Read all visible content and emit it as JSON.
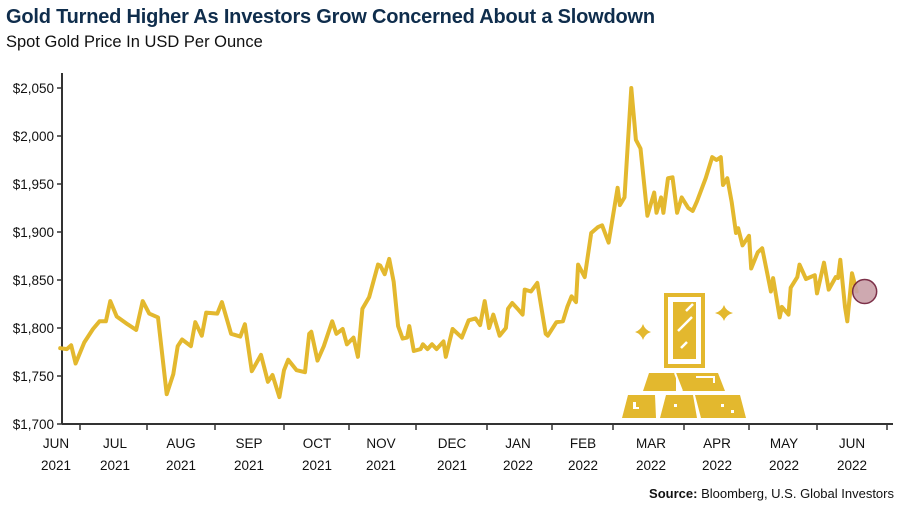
{
  "chart_data": {
    "type": "line",
    "title": "Gold Turned Higher As Investors Grow Concerned About a Slowdown",
    "subtitle": "Spot Gold Price In USD Per Ounce",
    "xlabel": "",
    "ylabel": "",
    "ylim": [
      1700,
      2050
    ],
    "y_ticks": [
      "$1,700",
      "$1,750",
      "$1,800",
      "$1,850",
      "$1,900",
      "$1,950",
      "$2,000",
      "$2,050"
    ],
    "y_tick_values": [
      1700,
      1750,
      1800,
      1850,
      1900,
      1950,
      2000,
      2050
    ],
    "x_ticks": [
      {
        "month": "JUN",
        "year": "2021"
      },
      {
        "month": "JUL",
        "year": "2021"
      },
      {
        "month": "AUG",
        "year": "2021"
      },
      {
        "month": "SEP",
        "year": "2021"
      },
      {
        "month": "OCT",
        "year": "2021"
      },
      {
        "month": "NOV",
        "year": "2021"
      },
      {
        "month": "DEC",
        "year": "2021"
      },
      {
        "month": "JAN",
        "year": "2022"
      },
      {
        "month": "FEB",
        "year": "2022"
      },
      {
        "month": "MAR",
        "year": "2022"
      },
      {
        "month": "APR",
        "year": "2022"
      },
      {
        "month": "MAY",
        "year": "2022"
      },
      {
        "month": "JUN",
        "year": "2022"
      }
    ],
    "grid": false,
    "line_color": "#e3b82e",
    "end_marker_color": "#c9a0a8",
    "series": [
      {
        "x": [
          "2021-06-22",
          "2021-06-25",
          "2021-06-27",
          "2021-06-29",
          "2021-07-03",
          "2021-07-07",
          "2021-07-10",
          "2021-07-13",
          "2021-07-15",
          "2021-07-18",
          "2021-07-23",
          "2021-07-27",
          "2021-07-30",
          "2021-08-02",
          "2021-08-06",
          "2021-08-10",
          "2021-08-13",
          "2021-08-15",
          "2021-08-17",
          "2021-08-21",
          "2021-08-23",
          "2021-08-26",
          "2021-08-28",
          "2021-09-02",
          "2021-09-04",
          "2021-09-08",
          "2021-09-12",
          "2021-09-14",
          "2021-09-17",
          "2021-09-21",
          "2021-09-24",
          "2021-09-26",
          "2021-09-29",
          "2021-10-01",
          "2021-10-03",
          "2021-10-07",
          "2021-10-11",
          "2021-10-13",
          "2021-10-14",
          "2021-10-17",
          "2021-10-20",
          "2021-10-24",
          "2021-10-26",
          "2021-10-29",
          "2021-10-31",
          "2021-11-03",
          "2021-11-05",
          "2021-11-07",
          "2021-11-10",
          "2021-11-14",
          "2021-11-15",
          "2021-11-17",
          "2021-11-19",
          "2021-11-21",
          "2021-11-23",
          "2021-11-25",
          "2021-11-27",
          "2021-11-28",
          "2021-11-30",
          "2021-12-03",
          "2021-12-04",
          "2021-12-06",
          "2021-12-08",
          "2021-12-10",
          "2021-12-13",
          "2021-12-14",
          "2021-12-17",
          "2021-12-21",
          "2021-12-24",
          "2021-12-27",
          "2021-12-29",
          "2021-12-31",
          "2022-01-02",
          "2022-01-04",
          "2022-01-07",
          "2022-01-10",
          "2022-01-11",
          "2022-01-13",
          "2022-01-16",
          "2022-01-18",
          "2022-01-19",
          "2022-01-22",
          "2022-01-25",
          "2022-01-29",
          "2022-01-30",
          "2022-02-03",
          "2022-02-06",
          "2022-02-08",
          "2022-02-10",
          "2022-02-12",
          "2022-02-13",
          "2022-02-16",
          "2022-02-19",
          "2022-02-22",
          "2022-02-24",
          "2022-02-27",
          "2022-03-03",
          "2022-03-04",
          "2022-03-06",
          "2022-03-09",
          "2022-03-11",
          "2022-03-13",
          "2022-03-16",
          "2022-03-19",
          "2022-03-20",
          "2022-03-22",
          "2022-03-23",
          "2022-03-25",
          "2022-03-27",
          "2022-03-29",
          "2022-03-31",
          "2022-04-03",
          "2022-04-05",
          "2022-04-07",
          "2022-04-11",
          "2022-04-14",
          "2022-04-16",
          "2022-04-18",
          "2022-04-19",
          "2022-04-21",
          "2022-04-23",
          "2022-04-25",
          "2022-04-26",
          "2022-04-28",
          "2022-05-01",
          "2022-05-02",
          "2022-05-05",
          "2022-05-07",
          "2022-05-11",
          "2022-05-12",
          "2022-05-15",
          "2022-05-16",
          "2022-05-19",
          "2022-05-20",
          "2022-05-23",
          "2022-05-24",
          "2022-05-27",
          "2022-05-31",
          "2022-06-01",
          "2022-06-04",
          "2022-06-06",
          "2022-06-09",
          "2022-06-10",
          "2022-06-11",
          "2022-06-13",
          "2022-06-14",
          "2022-06-16",
          "2022-06-18"
        ],
        "y": [
          1779,
          1778,
          1782,
          1763,
          1785,
          1799,
          1807,
          1807,
          1828,
          1812,
          1804,
          1798,
          1828,
          1815,
          1811,
          1731,
          1752,
          1781,
          1788,
          1781,
          1806,
          1792,
          1816,
          1815,
          1827,
          1794,
          1791,
          1804,
          1755,
          1772,
          1744,
          1751,
          1728,
          1756,
          1767,
          1756,
          1754,
          1794,
          1796,
          1766,
          1781,
          1807,
          1794,
          1799,
          1783,
          1790,
          1770,
          1820,
          1832,
          1866,
          1865,
          1856,
          1872,
          1848,
          1802,
          1789,
          1790,
          1802,
          1776,
          1778,
          1783,
          1778,
          1783,
          1778,
          1786,
          1770,
          1799,
          1790,
          1808,
          1810,
          1803,
          1828,
          1800,
          1814,
          1792,
          1800,
          1820,
          1826,
          1819,
          1814,
          1840,
          1838,
          1847,
          1794,
          1792,
          1806,
          1807,
          1822,
          1833,
          1827,
          1866,
          1853,
          1899,
          1905,
          1907,
          1889,
          1946,
          1928,
          1936,
          2050,
          1996,
          1987,
          1917,
          1941,
          1920,
          1936,
          1920,
          1956,
          1957,
          1920,
          1936,
          1925,
          1922,
          1932,
          1956,
          1978,
          1975,
          1978,
          1949,
          1956,
          1931,
          1899,
          1904,
          1886,
          1896,
          1862,
          1879,
          1883,
          1838,
          1852,
          1811,
          1822,
          1814,
          1842,
          1853,
          1866,
          1851,
          1855,
          1836,
          1868,
          1840,
          1853,
          1852,
          1871,
          1822,
          1807,
          1857,
          1838
        ]
      }
    ]
  },
  "source": {
    "label": "Source:",
    "text": "Bloomberg, U.S. Global Investors"
  },
  "illustration": {
    "icon": "gold-bars-icon",
    "color": "#e3b82e"
  }
}
